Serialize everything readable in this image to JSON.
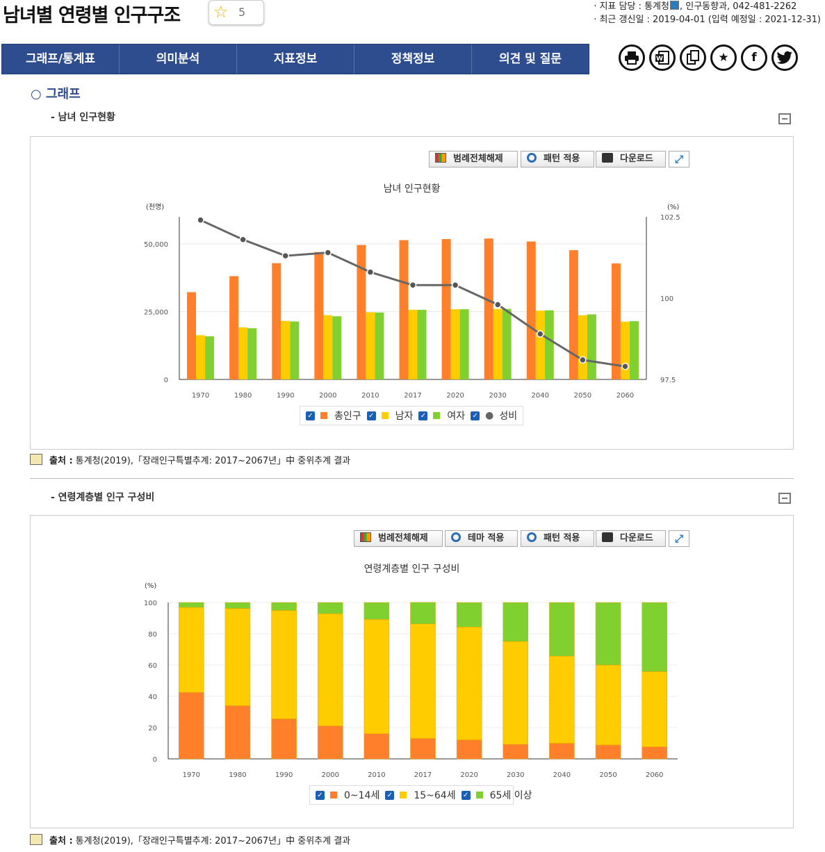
{
  "header": {
    "title": "남녀별 연령별 인구구조",
    "rating": "5",
    "meta_line1_prefix": "· 지표 담당 : 통계청",
    "meta_line1_suffix": ", 인구동향과, 042-481-2262",
    "meta_line2": "· 최근 갱신일 : 2019-04-01 (입력 예정일 : 2021-12-31)"
  },
  "nav": {
    "items": [
      "그래프/통계표",
      "의미분석",
      "지표정보",
      "정책정보",
      "의견 및 질문"
    ]
  },
  "tools": {
    "icons": [
      "printer-icon",
      "word-icon",
      "copy-icon",
      "star-icon",
      "facebook-icon",
      "twitter-icon"
    ]
  },
  "section": {
    "title": "○ 그래프"
  },
  "chart1": {
    "subtitle": "- 남녀 인구현황",
    "btn_legend": "범례전체해제",
    "btn_pattern": "패턴 적용",
    "btn_download": "다운로드",
    "title": "남녀 인구현황",
    "source_label": "출처 :",
    "source_text": "통계청(2019),「장래인구특별추계: 2017~2067년」中 중위추계 결과",
    "legend": [
      "총인구",
      "남자",
      "여자",
      "성비"
    ]
  },
  "chart2": {
    "subtitle": "- 연령계층별 인구 구성비",
    "btn_legend": "범례전체해제",
    "btn_theme": "테마 적용",
    "btn_pattern": "패턴 적용",
    "btn_download": "다운로드",
    "title": "연령계층별 인구 구성비",
    "source_label": "출처 :",
    "source_text": "통계청(2019),「장래인구특별추계: 2017~2067년」中 중위추계 결과",
    "legend": [
      "0~14세",
      "15~64세",
      "65세 이상"
    ]
  },
  "chart_data": [
    {
      "type": "bar",
      "title": "남녀 인구현황",
      "ylabel": "(천명)",
      "y2label": "(%)",
      "ylim": [
        0,
        60000
      ],
      "y2lim": [
        97.5,
        102.5
      ],
      "yticks": [
        "0",
        "25,000",
        "50,000"
      ],
      "y2ticks": [
        "97.5",
        "100",
        "102.5"
      ],
      "categories": [
        "1970",
        "1980",
        "1990",
        "2000",
        "2010",
        "2017",
        "2020",
        "2030",
        "2040",
        "2050",
        "2060"
      ],
      "series": [
        {
          "name": "총인구",
          "type": "bar",
          "color": "#ff7f2a",
          "values": [
            32200,
            38100,
            42900,
            47000,
            49600,
            51400,
            51800,
            52000,
            50900,
            47700,
            42800
          ]
        },
        {
          "name": "남자",
          "type": "bar",
          "color": "#ffcc00",
          "values": [
            16300,
            19200,
            21600,
            23700,
            24800,
            25700,
            25900,
            26000,
            25400,
            23700,
            21300
          ]
        },
        {
          "name": "여자",
          "type": "bar",
          "color": "#80d130",
          "values": [
            15900,
            18900,
            21400,
            23300,
            24700,
            25700,
            25900,
            26000,
            25500,
            24000,
            21500
          ]
        },
        {
          "name": "성비",
          "type": "line",
          "axis": "right",
          "color": "#666666",
          "values": [
            102.4,
            101.8,
            101.3,
            101.4,
            100.8,
            100.4,
            100.4,
            99.8,
            98.9,
            98.1,
            97.9
          ]
        }
      ],
      "grid": true,
      "legend_position": "bottom"
    },
    {
      "type": "bar",
      "stacked": true,
      "title": "연령계층별 인구 구성비",
      "ylabel": "(%)",
      "ylim": [
        0,
        100
      ],
      "yticks": [
        "0",
        "20",
        "40",
        "60",
        "80",
        "100"
      ],
      "categories": [
        "1970",
        "1980",
        "1990",
        "2000",
        "2010",
        "2017",
        "2020",
        "2030",
        "2040",
        "2050",
        "2060"
      ],
      "series": [
        {
          "name": "0~14세",
          "color": "#ff7f2a",
          "values": [
            42.5,
            34.0,
            25.6,
            21.1,
            16.1,
            13.1,
            12.2,
            9.3,
            10.0,
            8.9,
            7.7
          ]
        },
        {
          "name": "15~64세",
          "color": "#ffcc00",
          "values": [
            54.4,
            62.2,
            69.3,
            71.7,
            73.1,
            73.2,
            72.1,
            65.8,
            55.7,
            51.1,
            48.1
          ]
        },
        {
          "name": "65세 이상",
          "color": "#80d130",
          "values": [
            3.1,
            3.8,
            5.1,
            7.2,
            10.8,
            13.8,
            15.7,
            24.9,
            34.3,
            40.0,
            44.2
          ]
        }
      ],
      "grid": true,
      "legend_position": "bottom"
    }
  ]
}
